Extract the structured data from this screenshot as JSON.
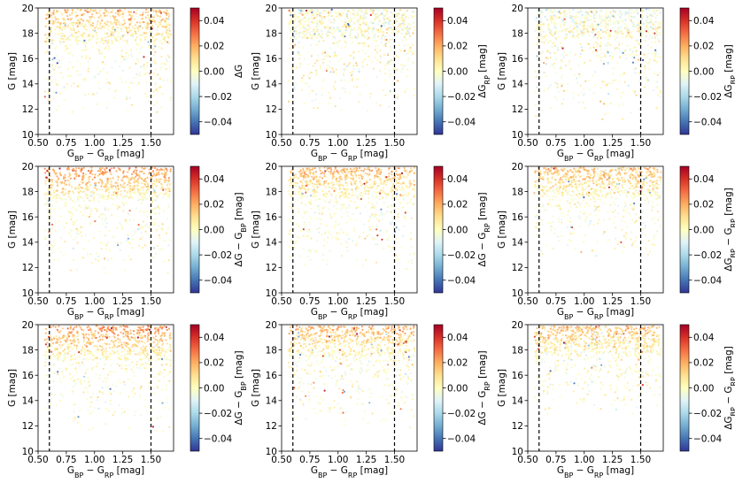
{
  "figure": {
    "layout": "3x3 grid of scatter plots with colorbars",
    "colormap_stops": [
      "#313695",
      "#4575b4",
      "#74add1",
      "#abd9e9",
      "#e0f3f8",
      "#ffffbf",
      "#fee090",
      "#fdae61",
      "#f46d43",
      "#d73027",
      "#a50026"
    ]
  },
  "chart_data": [
    {
      "type": "scatter",
      "panel": "row1-col1",
      "xlabel": "G_BP − G_RP [mag]",
      "ylabel": "G [mag]",
      "xlim": [
        0.5,
        1.7
      ],
      "ylim": [
        10,
        20
      ],
      "xticks": [
        "0.50",
        "0.75",
        "1.00",
        "1.25",
        "1.50"
      ],
      "yticks": [
        "10",
        "12",
        "14",
        "16",
        "18",
        "20"
      ],
      "vlines": [
        0.6,
        1.5
      ],
      "vline_style": "dashed",
      "colorbar": {
        "label": "ΔG",
        "range": [
          -0.05,
          0.05
        ],
        "ticks": [
          "0.04",
          "0.02",
          "0.00",
          "−0.02",
          "−0.04"
        ]
      },
      "pattern": {
        "color_spread": 0.012,
        "gmin": 11.5,
        "band_color": 0.015,
        "band_top": 17.2
      }
    },
    {
      "type": "scatter",
      "panel": "row1-col2",
      "xlabel": "G_BP − G_RP [mag]",
      "ylabel": "G [mag]",
      "xlim": [
        0.5,
        1.7
      ],
      "ylim": [
        10,
        20
      ],
      "xticks": [
        "0.50",
        "0.75",
        "1.00",
        "1.25",
        "1.50"
      ],
      "yticks": [
        "10",
        "12",
        "14",
        "16",
        "18",
        "20"
      ],
      "vlines": [
        0.6,
        1.5
      ],
      "vline_style": "dashed",
      "colorbar": {
        "label": "ΔG_RP [mag]",
        "range": [
          -0.05,
          0.05
        ],
        "ticks": [
          "0.04",
          "0.02",
          "0.00",
          "−0.02",
          "−0.04"
        ]
      },
      "pattern": {
        "color_spread": 0.015,
        "gmin": 11.5,
        "band_color": 0.0,
        "band_top": 17.6
      }
    },
    {
      "type": "scatter",
      "panel": "row1-col3",
      "xlabel": "G_BP − G_RP [mag]",
      "ylabel": "G [mag]",
      "xlim": [
        0.5,
        1.7
      ],
      "ylim": [
        10,
        20
      ],
      "xticks": [
        "0.50",
        "0.75",
        "1.00",
        "1.25",
        "1.50"
      ],
      "yticks": [
        "10",
        "12",
        "14",
        "16",
        "18",
        "20"
      ],
      "vlines": [
        0.6,
        1.5
      ],
      "vline_style": "dashed",
      "colorbar": {
        "label": "ΔG_BP [mag]",
        "range": [
          -0.05,
          0.05
        ],
        "ticks": [
          "0.04",
          "0.02",
          "0.00",
          "−0.02",
          "−0.04"
        ]
      },
      "pattern": {
        "color_spread": 0.014,
        "gmin": 11.0,
        "band_color": -0.005,
        "band_top": 17.6
      }
    },
    {
      "type": "scatter",
      "panel": "row2-col1",
      "xlabel": "G_BP − G_RP [mag]",
      "ylabel": "G [mag]",
      "xlim": [
        0.5,
        1.7
      ],
      "ylim": [
        10,
        20
      ],
      "xticks": [
        "0.50",
        "0.75",
        "1.00",
        "1.25",
        "1.50"
      ],
      "yticks": [
        "10",
        "12",
        "14",
        "16",
        "18",
        "20"
      ],
      "vlines": [
        0.6,
        1.5
      ],
      "vline_style": "dashed",
      "colorbar": {
        "label": "ΔG − G_BP [mag]",
        "range": [
          -0.05,
          0.05
        ],
        "ticks": [
          "0.04",
          "0.02",
          "0.00",
          "−0.02",
          "−0.04"
        ]
      },
      "pattern": {
        "color_spread": 0.01,
        "gmin": 11.5,
        "band_color": 0.025,
        "band_top": 17.4
      }
    },
    {
      "type": "scatter",
      "panel": "row2-col2",
      "xlabel": "G_BP − G_RP [mag]",
      "ylabel": "G [mag]",
      "xlim": [
        0.5,
        1.7
      ],
      "ylim": [
        10,
        20
      ],
      "xticks": [
        "0.50",
        "0.75",
        "1.00",
        "1.25",
        "1.50"
      ],
      "yticks": [
        "10",
        "12",
        "14",
        "16",
        "18",
        "20"
      ],
      "vlines": [
        0.6,
        1.5
      ],
      "vline_style": "dashed",
      "colorbar": {
        "label": "ΔG − G_RP [mag]",
        "range": [
          -0.05,
          0.05
        ],
        "ticks": [
          "0.04",
          "0.02",
          "0.00",
          "−0.02",
          "−0.04"
        ]
      },
      "pattern": {
        "color_spread": 0.01,
        "gmin": 11.8,
        "band_color": 0.02,
        "band_top": 17.5
      }
    },
    {
      "type": "scatter",
      "panel": "row2-col3",
      "xlabel": "G_BP − G_RP [mag]",
      "ylabel": "G [mag]",
      "xlim": [
        0.5,
        1.7
      ],
      "ylim": [
        10,
        20
      ],
      "xticks": [
        "0.50",
        "0.75",
        "1.00",
        "1.25",
        "1.50"
      ],
      "yticks": [
        "10",
        "12",
        "14",
        "16",
        "18",
        "20"
      ],
      "vlines": [
        0.6,
        1.5
      ],
      "vline_style": "dashed",
      "colorbar": {
        "label": "ΔG_BP − G_RP [mag]",
        "range": [
          -0.05,
          0.05
        ],
        "ticks": [
          "0.04",
          "0.02",
          "0.00",
          "−0.02",
          "−0.04"
        ]
      },
      "pattern": {
        "color_spread": 0.011,
        "gmin": 12.8,
        "band_color": 0.018,
        "band_top": 17.6
      }
    },
    {
      "type": "scatter",
      "panel": "row3-col1",
      "xlabel": "G_BP − G_RP [mag]",
      "ylabel": "G [mag]",
      "xlim": [
        0.5,
        1.7
      ],
      "ylim": [
        10,
        20
      ],
      "xticks": [
        "0.50",
        "0.75",
        "1.00",
        "1.25",
        "1.50"
      ],
      "yticks": [
        "10",
        "12",
        "14",
        "16",
        "18",
        "20"
      ],
      "vlines": [
        0.6,
        1.5
      ],
      "vline_style": "dashed",
      "colorbar": {
        "label": "ΔG − G_BP [mag]",
        "range": [
          -0.05,
          0.05
        ],
        "ticks": [
          "0.04",
          "0.02",
          "0.00",
          "−0.02",
          "−0.04"
        ]
      },
      "pattern": {
        "color_spread": 0.01,
        "gmin": 11.5,
        "band_color": 0.025,
        "band_top": 17.2
      }
    },
    {
      "type": "scatter",
      "panel": "row3-col2",
      "xlabel": "G_BP − G_RP [mag]",
      "ylabel": "G [mag]",
      "xlim": [
        0.5,
        1.7
      ],
      "ylim": [
        10,
        20
      ],
      "xticks": [
        "0.50",
        "0.75",
        "1.00",
        "1.25",
        "1.50"
      ],
      "yticks": [
        "10",
        "12",
        "14",
        "16",
        "18",
        "20"
      ],
      "vlines": [
        0.6,
        1.5
      ],
      "vline_style": "dashed",
      "colorbar": {
        "label": "ΔG − G_RP [mag]",
        "range": [
          -0.05,
          0.05
        ],
        "ticks": [
          "0.04",
          "0.02",
          "0.00",
          "−0.02",
          "−0.04"
        ]
      },
      "pattern": {
        "color_spread": 0.01,
        "gmin": 11.8,
        "band_color": 0.02,
        "band_top": 17.5
      }
    },
    {
      "type": "scatter",
      "panel": "row3-col3",
      "xlabel": "G_BP − G_RP [mag]",
      "ylabel": "G [mag]",
      "xlim": [
        0.5,
        1.7
      ],
      "ylim": [
        10,
        20
      ],
      "xticks": [
        "0.50",
        "0.75",
        "1.00",
        "1.25",
        "1.50"
      ],
      "yticks": [
        "10",
        "12",
        "14",
        "16",
        "18",
        "20"
      ],
      "vlines": [
        0.6,
        1.5
      ],
      "vline_style": "dashed",
      "colorbar": {
        "label": "ΔG_BP − G_RP [mag]",
        "range": [
          -0.05,
          0.05
        ],
        "ticks": [
          "0.04",
          "0.02",
          "0.00",
          "−0.02",
          "−0.04"
        ]
      },
      "pattern": {
        "color_spread": 0.011,
        "gmin": 12.8,
        "band_color": 0.018,
        "band_top": 17.6
      }
    }
  ]
}
